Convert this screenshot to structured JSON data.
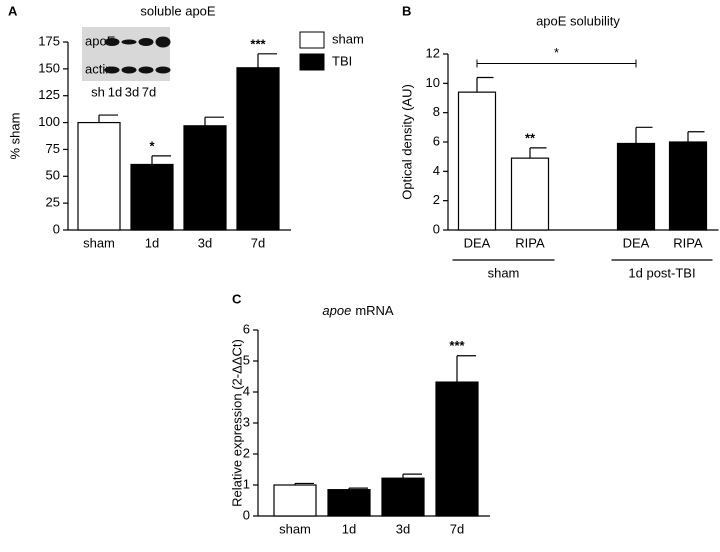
{
  "chart_data": [
    {
      "type": "bar",
      "panel": "A",
      "title": "soluble apoE",
      "ylabel": "% sham",
      "categories": [
        "sham",
        "1d",
        "3d",
        "7d"
      ],
      "values": [
        100,
        61,
        97,
        151
      ],
      "errors": [
        7,
        8,
        8,
        13
      ],
      "colors": [
        "#ffffff",
        "#000000",
        "#000000",
        "#000000"
      ],
      "annotations": [
        null,
        "*",
        null,
        "***"
      ],
      "ylim": [
        0,
        175
      ],
      "yticks": [
        0,
        25,
        50,
        75,
        100,
        125,
        150,
        175
      ],
      "legend": [
        {
          "name": "sham",
          "color": "#ffffff"
        },
        {
          "name": "TBI",
          "color": "#000000"
        }
      ],
      "inset": {
        "rows": [
          "apoE",
          "actin"
        ],
        "columns": [
          "sh",
          "1d",
          "3d",
          "7d"
        ]
      }
    },
    {
      "type": "bar",
      "panel": "B",
      "title": "apoE solubility",
      "ylabel": "Optical density (AU)",
      "categories": [
        "DEA",
        "RIPA",
        "DEA",
        "RIPA"
      ],
      "values": [
        9.4,
        4.9,
        5.9,
        6.0
      ],
      "errors": [
        1.0,
        0.7,
        1.1,
        0.7
      ],
      "colors": [
        "#ffffff",
        "#ffffff",
        "#000000",
        "#000000"
      ],
      "annotations": [
        null,
        "**",
        null,
        null
      ],
      "ylim": [
        0,
        12
      ],
      "yticks": [
        0,
        2,
        4,
        6,
        8,
        10,
        12
      ],
      "groups": [
        {
          "label": "sham",
          "from": 0,
          "to": 1
        },
        {
          "label": "1d post-TBI",
          "from": 2,
          "to": 3
        }
      ],
      "bracket": {
        "from": 0,
        "to": 2,
        "label": "*"
      }
    },
    {
      "type": "bar",
      "panel": "C",
      "title": [
        "apoe",
        "mRNA"
      ],
      "ylabel": "Relative expression (2-ΔΔCt)",
      "categories": [
        "sham",
        "1d",
        "3d",
        "7d"
      ],
      "values": [
        1.0,
        0.85,
        1.22,
        4.32
      ],
      "errors": [
        0.05,
        0.05,
        0.13,
        0.85
      ],
      "colors": [
        "#ffffff",
        "#000000",
        "#000000",
        "#000000"
      ],
      "annotations": [
        null,
        null,
        null,
        "***"
      ],
      "ylim": [
        0,
        6
      ],
      "yticks": [
        0,
        1,
        2,
        3,
        4,
        5,
        6
      ]
    }
  ]
}
